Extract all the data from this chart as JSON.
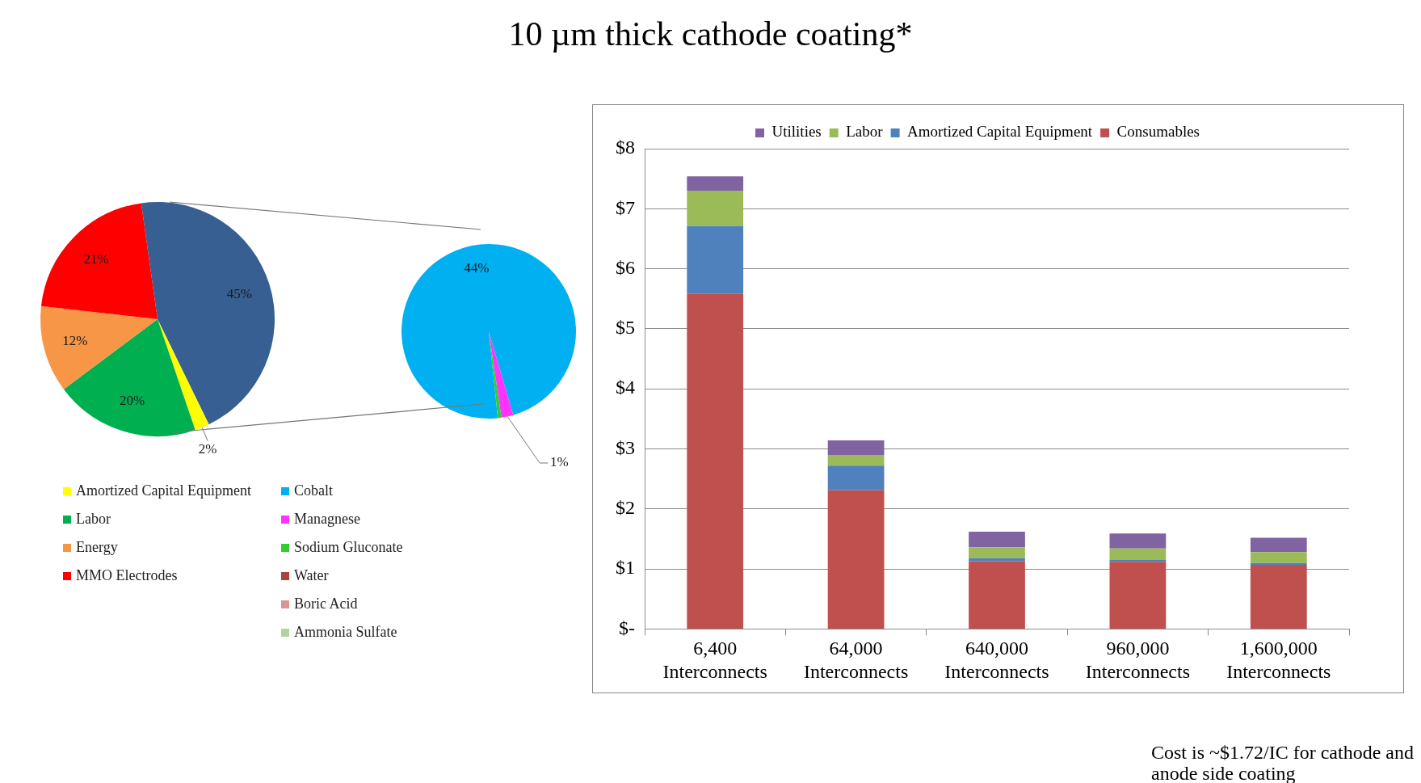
{
  "chart_data": [
    {
      "type": "pie",
      "categories": [
        null,
        "Amortized Capital Equipment",
        "Labor",
        "Energy",
        "MMO Electrodes"
      ],
      "values": [
        45,
        2,
        20,
        12,
        21
      ],
      "colors": [
        "#375f91",
        "#ffff00",
        "#00b050",
        "#f79646",
        "#ff0000"
      ],
      "value_labels": [
        "45%",
        "2%",
        "20%",
        "12%",
        "21%"
      ],
      "legend": "bottom"
    },
    {
      "type": "pie",
      "categories": [
        "Cobalt",
        "Managnese",
        "Sodium Gluconate",
        "Water",
        "Boric Acid",
        "Ammonia Sulfate"
      ],
      "values": [
        44,
        1,
        0.3,
        0,
        0,
        0
      ],
      "colors": [
        "#00b0f0",
        "#ff33ff",
        "#33cc33",
        "#a94442",
        "#d99694",
        "#b3d39c"
      ],
      "value_labels": [
        "44%",
        "1%",
        null,
        null,
        null,
        null
      ],
      "legend": "bottom"
    },
    {
      "type": "bar",
      "title": "10 µm thick cathode coating*",
      "stacked": true,
      "categories": [
        "6,400 Interconnects",
        "64,000 Interconnects",
        "640,000 Interconnects",
        "960,000 Interconnects",
        "1,600,000 Interconnects"
      ],
      "series": [
        {
          "name": "Consumables",
          "color": "#c0504d",
          "values": [
            5.58,
            2.31,
            1.13,
            1.12,
            1.07
          ]
        },
        {
          "name": "Amortized Capital Equipment",
          "color": "#4f81bd",
          "values": [
            1.13,
            0.41,
            0.05,
            0.03,
            0.03
          ]
        },
        {
          "name": "Labor",
          "color": "#9bbb59",
          "values": [
            0.59,
            0.18,
            0.18,
            0.19,
            0.18
          ]
        },
        {
          "name": "Utilities",
          "color": "#8064a2",
          "values": [
            0.24,
            0.24,
            0.26,
            0.25,
            0.24
          ]
        }
      ],
      "ylim": [
        0,
        8
      ],
      "yticks": [
        {
          "value": 0,
          "label": "$-"
        },
        {
          "value": 1,
          "label": "$1"
        },
        {
          "value": 2,
          "label": "$2"
        },
        {
          "value": 3,
          "label": "$3"
        },
        {
          "value": 4,
          "label": "$4"
        },
        {
          "value": 5,
          "label": "$5"
        },
        {
          "value": 6,
          "label": "$6"
        },
        {
          "value": 7,
          "label": "$7"
        },
        {
          "value": 8,
          "label": "$8"
        }
      ],
      "grid": "y",
      "legend": "top",
      "annotations": [
        "Cost is ~$1.72/IC for cathode and anode side coating"
      ]
    }
  ]
}
